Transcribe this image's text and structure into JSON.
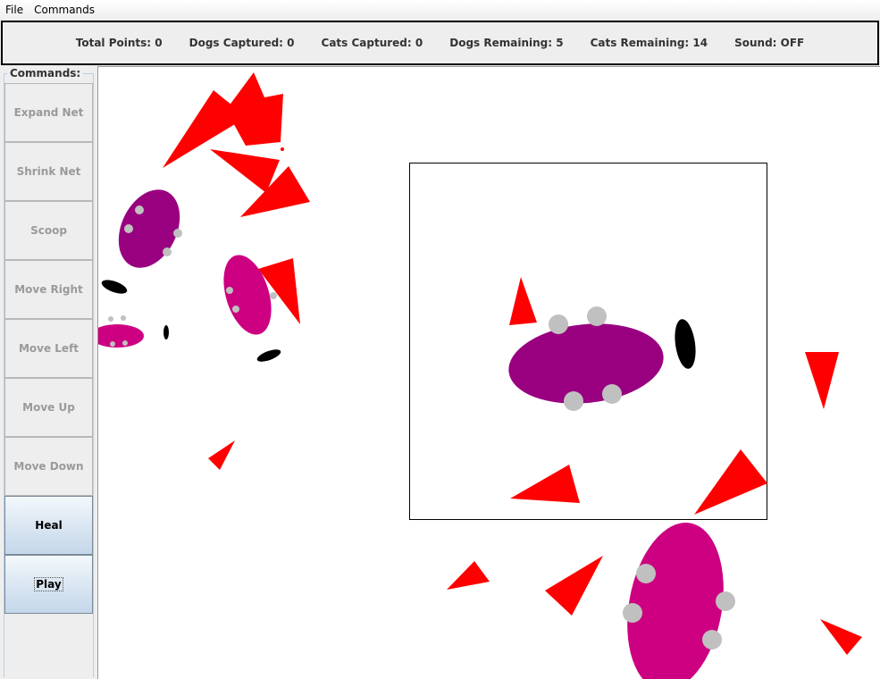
{
  "menubar": {
    "items": [
      "File",
      "Commands"
    ]
  },
  "scorebar": {
    "total_points": "Total Points: 0",
    "dogs_captured": "Dogs Captured: 0",
    "cats_captured": "Cats Captured: 0",
    "dogs_remaining": "Dogs Remaining: 5",
    "cats_remaining": "Cats Remaining: 14",
    "sound": "Sound: OFF"
  },
  "commands": {
    "title": "Commands:",
    "expand_net": "Expand Net",
    "shrink_net": "Shrink Net",
    "scoop": "Scoop",
    "move_right": "Move Right",
    "move_left": "Move Left",
    "move_up": "Move Up",
    "move_down": "Move Down",
    "heal": "Heal",
    "play": "Play"
  },
  "colors": {
    "cat": "#ff0000",
    "dog_purple": "#990080",
    "dog_magenta": "#cc0080",
    "dog_spot": "#c0c0c0",
    "net_border": "#000000",
    "black_blob": "#000000"
  }
}
